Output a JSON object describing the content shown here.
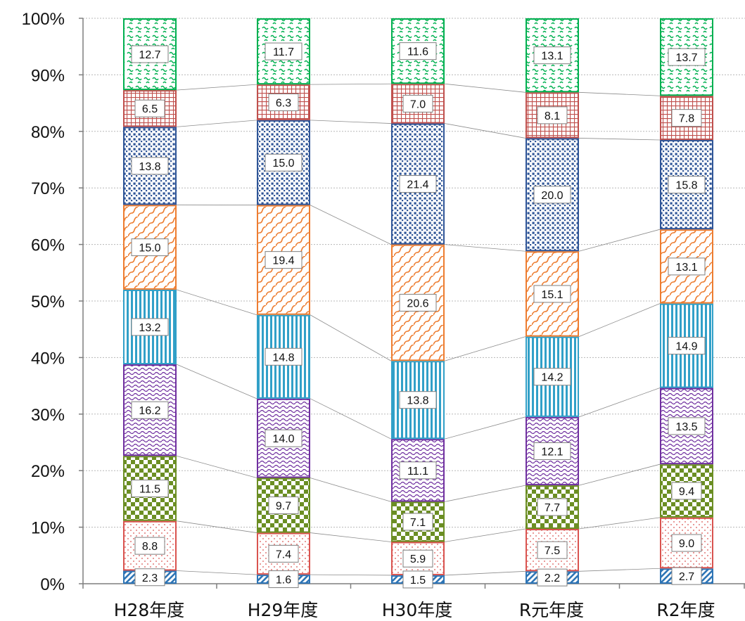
{
  "chart_data": {
    "type": "bar",
    "stacked": true,
    "percent": true,
    "categories": [
      "H28年度",
      "H29年度",
      "H30年度",
      "R元年度",
      "R2年度"
    ],
    "series": [
      {
        "values": [
          2.3,
          1.6,
          1.5,
          2.2,
          2.7
        ],
        "color": "#2e75b6",
        "pattern": "diagonal-stripes"
      },
      {
        "values": [
          8.8,
          7.4,
          5.9,
          7.5,
          9.0
        ],
        "color": "#d9534f",
        "pattern": "dots"
      },
      {
        "values": [
          11.5,
          9.7,
          7.1,
          7.7,
          9.4
        ],
        "color": "#6b8e23",
        "pattern": "checkerboard"
      },
      {
        "values": [
          16.2,
          14.0,
          11.1,
          12.1,
          13.5
        ],
        "color": "#7030a0",
        "pattern": "waves"
      },
      {
        "values": [
          13.2,
          14.8,
          13.8,
          14.2,
          14.9
        ],
        "color": "#31a0c8",
        "pattern": "vertical-stripes"
      },
      {
        "values": [
          15.0,
          19.4,
          20.6,
          15.1,
          13.1
        ],
        "color": "#ed7d31",
        "pattern": "wavy-diagonal"
      },
      {
        "values": [
          13.8,
          15.0,
          21.4,
          20.0,
          15.8
        ],
        "color": "#2f5597",
        "pattern": "dense-dots"
      },
      {
        "values": [
          6.5,
          6.3,
          7.0,
          8.1,
          7.8
        ],
        "color": "#c0504d",
        "pattern": "grid"
      },
      {
        "values": [
          12.7,
          11.7,
          11.6,
          13.1,
          13.7
        ],
        "color": "#00b050",
        "pattern": "squiggle"
      }
    ],
    "labels": [
      [
        "2.3",
        "1.6",
        "1.5",
        "2.2",
        "2.7"
      ],
      [
        "8.8",
        "7.4",
        "5.9",
        "7.5",
        "9.0"
      ],
      [
        "11.5",
        "9.7",
        "7.1",
        "7.7",
        "9.4"
      ],
      [
        "16.2",
        "14.0",
        "11.1",
        "12.1",
        "13.5"
      ],
      [
        "13.2",
        "14.8",
        "13.8",
        "14.2",
        "14.9"
      ],
      [
        "15.0",
        "19.4",
        "20.6",
        "15.1",
        "13.1"
      ],
      [
        "13.8",
        "15.0",
        "21.4",
        "20.0",
        "15.8"
      ],
      [
        "6.5",
        "6.3",
        "7.0",
        "8.1",
        "7.8"
      ],
      [
        "12.7",
        "11.7",
        "11.6",
        "13.1",
        "13.7"
      ]
    ],
    "y_ticks": [
      "0%",
      "10%",
      "20%",
      "30%",
      "40%",
      "50%",
      "60%",
      "70%",
      "80%",
      "90%",
      "100%"
    ],
    "ylim": [
      0,
      100
    ],
    "grid": true,
    "connector_lines": true,
    "legend": "none",
    "title": "",
    "xlabel": "",
    "ylabel": ""
  }
}
